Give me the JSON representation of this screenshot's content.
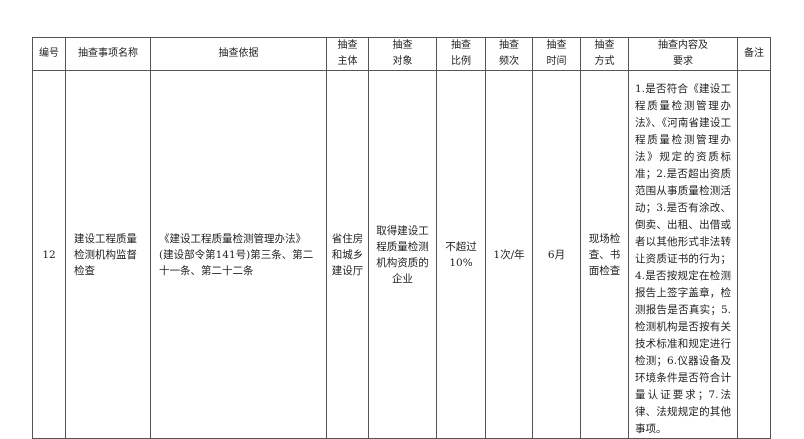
{
  "headers": [
    "编号",
    "抽查事项名称",
    "抽查依据",
    "抽查\n主体",
    "抽查\n对象",
    "抽查\n比例",
    "抽查\n频次",
    "抽查\n时间",
    "抽查\n方式",
    "抽查内容及\n要求",
    "备注"
  ],
  "rows": [
    {
      "no": "12",
      "name": "建设工程质量检测机构监督检查",
      "basis": "《建设工程质量检测管理办法》(建设部令第141号)第三条、第二十一条、第二十二条",
      "subject": "省住房和城乡建设厅",
      "object": "取得建设工程质量检测机构资质的企业",
      "ratio": "不超过10%",
      "frequency": "1次/年",
      "time": "6月",
      "method": "现场检查、书面检查",
      "content": "1.是否符合《建设工程质量检测管理办法》、《河南省建设工程质量检测管理办法》规定的资质标准；2.是否超出资质范围从事质量检测活动；3.是否有涂改、倒卖、出租、出借或者以其他形式非法转让资质证书的行为；4.是否按规定在检测报告上签字盖章，检测报告是否真实；5.检测机构是否按有关技术标准和规定进行检测；6.仪器设备及环境条件是否符合计量认证要求；7.法律、法规规定的其他事项。",
      "remark": ""
    }
  ]
}
